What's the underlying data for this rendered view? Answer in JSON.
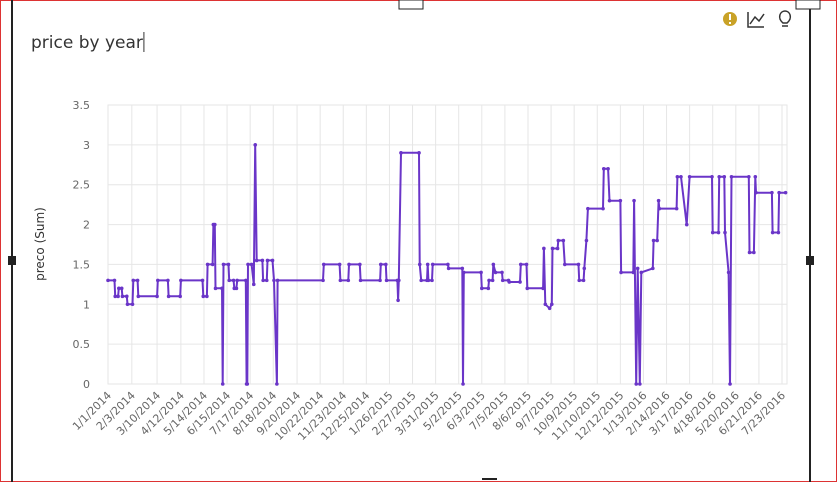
{
  "chart_data": {
    "type": "line",
    "title": "price by year",
    "y_label": "preco (Sum)",
    "color": "#6a35c8",
    "grid": true,
    "ylim": [
      0,
      3.5
    ],
    "yticks": [
      0,
      0.5,
      1,
      1.5,
      2,
      2.5,
      3,
      3.5
    ],
    "xticks": [
      "1/1/2014",
      "2/3/2014",
      "3/10/2014",
      "4/12/2014",
      "5/14/2014",
      "6/15/2014",
      "7/17/2014",
      "8/18/2014",
      "9/20/2014",
      "10/22/2014",
      "11/23/2014",
      "12/25/2014",
      "1/26/2015",
      "2/27/2015",
      "3/31/2015",
      "5/2/2015",
      "6/3/2015",
      "7/5/2015",
      "8/6/2015",
      "9/7/2015",
      "10/9/2015",
      "11/10/2015",
      "12/12/2015",
      "1/13/2016",
      "2/14/2016",
      "3/17/2016",
      "4/18/2016",
      "5/20/2016",
      "6/21/2016",
      "7/23/2016"
    ],
    "x": [
      "1/1/2014",
      "1/10/2014",
      "1/11/2014",
      "1/15/2014",
      "1/16/2014",
      "1/20/2014",
      "1/21/2014",
      "1/27/2014",
      "1/28/2014",
      "2/4/2014",
      "2/5/2014",
      "2/11/2014",
      "2/12/2014",
      "3/10/2014",
      "3/11/2014",
      "3/25/2014",
      "3/26/2014",
      "4/11/2014",
      "4/12/2014",
      "5/12/2014",
      "5/13/2014",
      "5/18/2014",
      "5/19/2014",
      "5/26/2014",
      "5/27/2014",
      "5/29/2014",
      "5/30/2014",
      "6/8/2014",
      "6/9/2014",
      "6/10/2014",
      "6/17/2014",
      "6/18/2014",
      "6/24/2014",
      "6/25/2014",
      "6/28/2014",
      "6/29/2014",
      "7/11/2014",
      "7/12/2014",
      "7/13/2014",
      "7/14/2014",
      "7/19/2014",
      "7/22/2014",
      "7/24/2014",
      "7/26/2014",
      "8/3/2014",
      "8/4/2014",
      "8/9/2014",
      "8/10/2014",
      "8/17/2014",
      "8/19/2014",
      "8/23/2014",
      "8/24/2014",
      "10/26/2014",
      "10/27/2014",
      "11/18/2014",
      "11/19/2014",
      "11/30/2014",
      "12/1/2014",
      "12/16/2014",
      "12/17/2014",
      "1/13/2015",
      "1/14/2015",
      "1/21/2015",
      "1/22/2015",
      "2/6/2015",
      "2/7/2015",
      "2/8/2015",
      "2/11/2015",
      "3/8/2015",
      "3/9/2015",
      "3/11/2015",
      "3/19/2015",
      "3/20/2015",
      "3/21/2015",
      "3/26/2015",
      "3/27/2015",
      "4/17/2015",
      "4/18/2015",
      "5/7/2015",
      "5/8/2015",
      "5/9/2015",
      "6/2/2015",
      "6/3/2015",
      "6/12/2015",
      "6/13/2015",
      "6/18/2015",
      "6/19/2015",
      "6/22/2015",
      "7/1/2015",
      "7/2/2015",
      "7/10/2015",
      "7/11/2015",
      "7/26/2015",
      "7/27/2015",
      "8/4/2015",
      "8/5/2015",
      "8/27/2015",
      "8/28/2015",
      "8/30/2015",
      "9/5/2015",
      "9/8/2015",
      "9/9/2015",
      "9/16/2015",
      "9/17/2015",
      "9/24/2015",
      "9/26/2015",
      "10/15/2015",
      "10/16/2015",
      "10/22/2015",
      "10/23/2015",
      "10/26/2015",
      "10/28/2015",
      "11/18/2015",
      "11/19/2015",
      "11/25/2015",
      "11/27/2015",
      "12/12/2015",
      "12/13/2015",
      "12/30/2015",
      "12/31/2015",
      "1/3/2016",
      "1/5/2016",
      "1/8/2016",
      "1/10/2016",
      "1/26/2016",
      "1/27/2016",
      "2/1/2016",
      "2/3/2016",
      "2/4/2016",
      "2/28/2016",
      "2/29/2016",
      "3/5/2016",
      "3/13/2016",
      "3/17/2016",
      "4/17/2016",
      "4/18/2016",
      "4/26/2016",
      "4/27/2016",
      "5/4/2016",
      "5/5/2016",
      "5/10/2016",
      "5/12/2016",
      "5/14/2016",
      "6/7/2016",
      "6/8/2016",
      "6/14/2016",
      "6/16/2016",
      "6/17/2016",
      "7/9/2016",
      "7/10/2016",
      "7/18/2016",
      "7/19/2016",
      "7/28/2016"
    ],
    "values": [
      1.3,
      1.3,
      1.1,
      1.1,
      1.2,
      1.2,
      1.1,
      1.1,
      1.0,
      1.0,
      1.3,
      1.3,
      1.1,
      1.1,
      1.3,
      1.3,
      1.1,
      1.1,
      1.3,
      1.3,
      1.1,
      1.1,
      1.5,
      1.5,
      2.0,
      2.0,
      1.2,
      1.2,
      0,
      1.5,
      1.5,
      1.3,
      1.3,
      1.2,
      1.2,
      1.3,
      1.3,
      0,
      0,
      1.5,
      1.5,
      1.25,
      3.0,
      1.55,
      1.55,
      1.3,
      1.3,
      1.55,
      1.55,
      1.3,
      0,
      1.3,
      1.3,
      1.5,
      1.5,
      1.3,
      1.3,
      1.5,
      1.5,
      1.3,
      1.3,
      1.5,
      1.5,
      1.3,
      1.3,
      1.05,
      1.3,
      2.9,
      2.9,
      1.5,
      1.3,
      1.3,
      1.5,
      1.3,
      1.3,
      1.5,
      1.5,
      1.45,
      1.45,
      0,
      1.4,
      1.4,
      1.2,
      1.2,
      1.3,
      1.3,
      1.5,
      1.4,
      1.4,
      1.3,
      1.3,
      1.28,
      1.28,
      1.5,
      1.5,
      1.2,
      1.2,
      1.7,
      1.0,
      0.95,
      1.0,
      1.7,
      1.7,
      1.8,
      1.8,
      1.5,
      1.5,
      1.3,
      1.3,
      1.45,
      1.8,
      2.2,
      2.2,
      2.7,
      2.7,
      2.3,
      2.3,
      1.4,
      1.4,
      2.3,
      0,
      1.45,
      0,
      1.4,
      1.45,
      1.8,
      1.8,
      2.3,
      2.2,
      2.2,
      2.6,
      2.6,
      2.0,
      2.6,
      2.6,
      1.9,
      1.9,
      2.6,
      2.6,
      1.9,
      1.4,
      0,
      2.6,
      2.6,
      1.65,
      1.65,
      2.6,
      2.4,
      2.4,
      1.9,
      1.9,
      2.4,
      2.4
    ]
  }
}
